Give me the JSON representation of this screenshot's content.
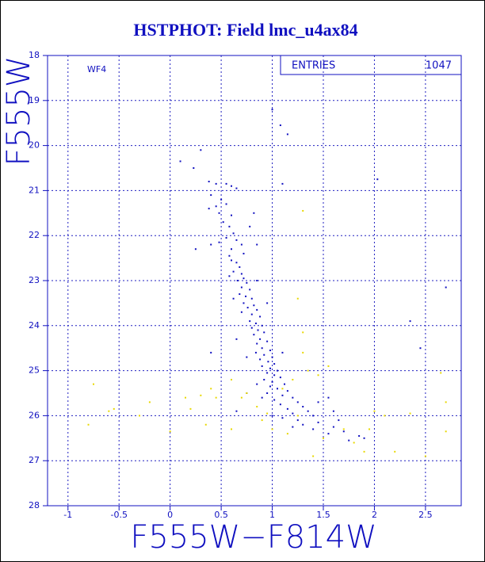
{
  "chart_data": {
    "type": "scatter",
    "title": "HSTPHOT: Field lmc_u4ax84",
    "x_label": "F555W−F814W",
    "y_label": "F555W",
    "annotation": "WF4",
    "stats_label": "ENTRIES",
    "stats_value": "1047",
    "xlim": [
      -1.2,
      2.85
    ],
    "ylim": [
      28,
      18
    ],
    "xticks": [
      -1,
      -0.5,
      0,
      0.5,
      1,
      1.5,
      2,
      2.5
    ],
    "yticks": [
      18,
      19,
      20,
      21,
      22,
      23,
      24,
      25,
      26,
      27,
      28
    ],
    "grid": true,
    "series": [
      {
        "color": "#1010c0",
        "x": [
          0.38,
          0.45,
          0.55,
          0.6,
          0.65,
          0.4,
          0.5,
          0.45,
          0.55,
          0.38,
          0.48,
          0.6,
          0.52,
          0.58,
          0.62,
          0.55,
          0.48,
          0.65,
          0.7,
          0.6,
          0.78,
          0.82,
          0.72,
          0.58,
          0.4,
          0.85,
          0.6,
          0.65,
          0.68,
          0.62,
          0.7,
          0.72,
          0.66,
          0.75,
          0.7,
          0.78,
          0.68,
          0.74,
          0.8,
          0.72,
          0.82,
          0.76,
          0.85,
          0.7,
          0.8,
          0.88,
          0.78,
          0.84,
          0.9,
          0.62,
          0.95,
          0.58,
          0.85,
          0.8,
          0.86,
          0.92,
          0.82,
          0.88,
          0.95,
          0.85,
          0.9,
          0.98,
          0.84,
          0.92,
          1.0,
          0.88,
          0.96,
          1.02,
          0.9,
          0.98,
          1.05,
          0.75,
          0.65,
          1.1,
          0.95,
          1.02,
          1.08,
          0.92,
          1.0,
          1.12,
          0.98,
          1.05,
          1.15,
          0.95,
          1.1,
          1.2,
          1.02,
          1.25,
          1.08,
          1.3,
          1.15,
          1.35,
          1.2,
          1.4,
          0.9,
          0.85,
          1.45,
          1.55,
          1.6,
          0.75,
          0.65,
          1.1,
          1.25,
          1.45,
          1.3,
          1.6,
          1.4,
          1.7,
          1.55,
          1.85,
          1.9,
          1.75,
          1.2,
          1.0,
          1.65,
          0.1,
          0.3,
          0.23,
          1.0,
          1.08,
          1.15,
          2.03,
          1.1,
          2.7,
          2.35,
          2.45,
          0.4,
          0.25
        ],
        "values": [
          20.8,
          20.85,
          20.85,
          20.9,
          20.95,
          21.1,
          21.2,
          21.35,
          21.3,
          21.4,
          21.5,
          21.55,
          21.7,
          21.8,
          21.95,
          22.05,
          22.15,
          22.1,
          22.2,
          22.3,
          21.8,
          21.5,
          22.4,
          22.45,
          22.2,
          22.2,
          22.55,
          22.6,
          22.7,
          22.8,
          22.85,
          22.95,
          23.0,
          23.05,
          23.15,
          23.2,
          23.3,
          23.35,
          23.4,
          23.5,
          23.55,
          23.6,
          23.65,
          23.7,
          23.75,
          23.8,
          23.9,
          23.95,
          24.0,
          23.4,
          23.5,
          22.9,
          23.0,
          24.05,
          24.1,
          24.15,
          24.2,
          24.3,
          24.35,
          24.4,
          24.5,
          24.55,
          24.6,
          24.65,
          24.7,
          24.75,
          24.8,
          24.85,
          24.9,
          24.95,
          25.0,
          24.7,
          24.3,
          24.6,
          25.05,
          25.1,
          25.15,
          25.2,
          25.25,
          25.3,
          25.35,
          25.4,
          25.45,
          25.5,
          25.55,
          25.6,
          25.65,
          25.7,
          25.75,
          25.8,
          25.85,
          25.9,
          25.95,
          26.0,
          25.6,
          25.3,
          25.7,
          25.6,
          25.9,
          25.5,
          25.9,
          26.05,
          26.1,
          26.15,
          26.2,
          26.25,
          26.3,
          26.35,
          26.4,
          26.45,
          26.5,
          26.55,
          26.25,
          26.0,
          26.1,
          20.35,
          20.1,
          20.5,
          19.2,
          19.55,
          19.75,
          20.75,
          20.85,
          23.15,
          23.9,
          24.5,
          24.6,
          22.3
        ]
      },
      {
        "color": "#e8d800",
        "x": [
          -0.8,
          -0.75,
          -0.6,
          -0.55,
          -0.3,
          -0.2,
          0.0,
          0.15,
          0.3,
          0.4,
          0.45,
          0.2,
          0.6,
          0.7,
          0.75,
          0.85,
          0.9,
          0.95,
          1.0,
          1.1,
          1.15,
          1.2,
          1.25,
          1.3,
          1.35,
          1.3,
          1.45,
          1.5,
          1.55,
          1.7,
          1.8,
          1.9,
          1.95,
          2.0,
          2.1,
          2.2,
          2.35,
          2.5,
          2.65,
          2.7,
          2.7,
          1.3,
          1.25,
          0.35,
          0.6,
          1.4
        ],
        "values": [
          26.2,
          25.3,
          25.9,
          25.85,
          26.0,
          25.7,
          26.35,
          25.6,
          25.55,
          25.4,
          25.6,
          25.85,
          25.2,
          25.6,
          25.5,
          25.8,
          26.1,
          25.95,
          26.3,
          25.4,
          26.4,
          25.2,
          26.0,
          24.6,
          25.0,
          24.15,
          25.1,
          26.5,
          24.9,
          26.3,
          26.6,
          26.8,
          26.3,
          25.9,
          26.0,
          26.8,
          25.95,
          26.9,
          25.05,
          25.7,
          26.35,
          21.45,
          23.4,
          26.2,
          26.3,
          26.9
        ]
      }
    ]
  }
}
